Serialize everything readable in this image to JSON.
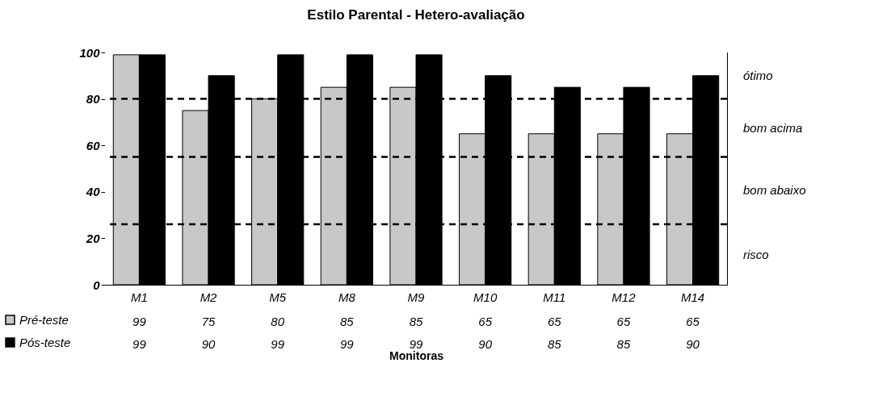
{
  "chart_data": {
    "type": "bar",
    "title": "Estilo Parental - Hetero-avaliação",
    "xlabel": "Monitoras",
    "categories": [
      "M1",
      "M2",
      "M5",
      "M8",
      "M9",
      "M10",
      "M11",
      "M12",
      "M14"
    ],
    "series": [
      {
        "name": "Pré-teste",
        "color": "#c8c8c8",
        "values": [
          99,
          75,
          80,
          85,
          85,
          65,
          65,
          65,
          65
        ]
      },
      {
        "name": "Pós-teste",
        "color": "#000000",
        "values": [
          99,
          90,
          99,
          99,
          99,
          90,
          85,
          85,
          90
        ]
      }
    ],
    "ylim": [
      0,
      100
    ],
    "yticks": [
      0,
      20,
      40,
      60,
      80,
      100
    ],
    "data_labels": true,
    "legend": "bottom left",
    "ref_lines": [
      {
        "axis": "y",
        "value": 80,
        "line_style": "dashed"
      },
      {
        "axis": "y",
        "value": 55,
        "line_style": "dashed"
      },
      {
        "axis": "y",
        "value": 26,
        "line_style": "dashed"
      }
    ],
    "bands": [
      {
        "axis": "y",
        "from": 80,
        "to": 100,
        "label": "ótimo",
        "color": "#ffffff"
      },
      {
        "axis": "y",
        "from": 55,
        "to": 80,
        "label": "bom acima",
        "color": "#ffffff"
      },
      {
        "axis": "y",
        "from": 26,
        "to": 55,
        "label": "bom abaixo",
        "color": "#ffffff"
      },
      {
        "axis": "y",
        "from": 0,
        "to": 26,
        "label": "risco",
        "color": "#ffffff"
      }
    ]
  }
}
